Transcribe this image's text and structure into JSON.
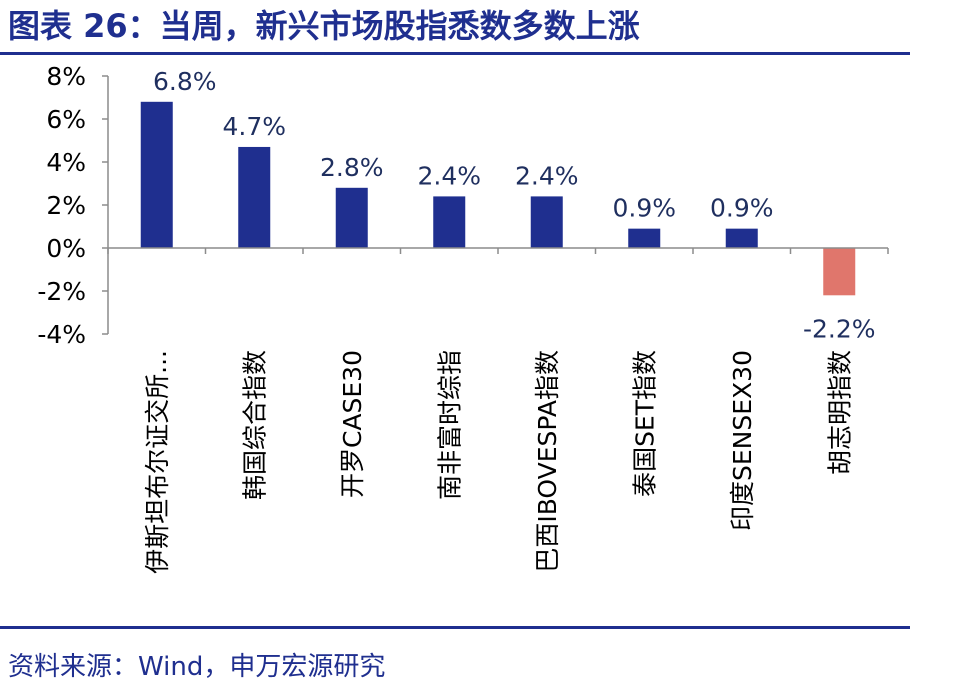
{
  "title": "图表 26：当周，新兴市场股指悉数多数上涨",
  "source": "资料来源：Wind，申万宏源研究",
  "colors": {
    "positive": "#1f2f8f",
    "negative": "#e0766c",
    "title": "#1f2f8f",
    "axis": "#8c8c8c"
  },
  "chart_data": {
    "type": "bar",
    "categories": [
      "伊斯坦布尔证交所...",
      "韩国综合指数",
      "开罗CASE30",
      "南非富时综指",
      "巴西IBOVESPA指数",
      "泰国SET指数",
      "印度SENSEX30",
      "胡志明指数"
    ],
    "values": [
      6.8,
      4.7,
      2.8,
      2.4,
      2.4,
      0.9,
      0.9,
      -2.2
    ],
    "data_labels": [
      "6.8%",
      "4.7%",
      "2.8%",
      "2.4%",
      "2.4%",
      "0.9%",
      "0.9%",
      "-2.2%"
    ],
    "ylim": [
      -4,
      8
    ],
    "yticks": [
      8,
      6,
      4,
      2,
      0,
      -2,
      -4
    ],
    "ytick_labels": [
      "8%",
      "6%",
      "4%",
      "2%",
      "0%",
      "-2%",
      "-4%"
    ],
    "grid": false,
    "legend": "none"
  }
}
